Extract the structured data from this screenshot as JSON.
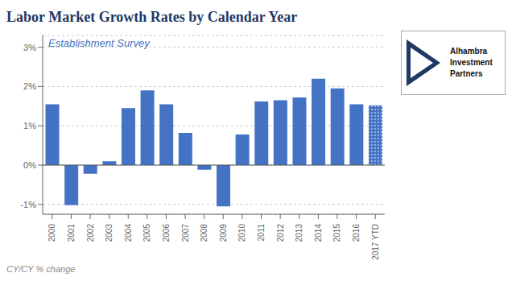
{
  "chart_data": {
    "type": "bar",
    "title": "Labor Market Growth Rates by Calendar Year",
    "subtitle": "Establishment Survey",
    "annotations": [
      "CY/CY % change",
      "Alhambra",
      "Investment",
      "Partners"
    ],
    "categories": [
      "2000",
      "2001",
      "2002",
      "2003",
      "2004",
      "2005",
      "2006",
      "2007",
      "2008",
      "2009",
      "2010",
      "2011",
      "2012",
      "2013",
      "2014",
      "2015",
      "2016",
      "2017 YTD"
    ],
    "values": [
      1.55,
      -1.02,
      -0.22,
      0.1,
      1.45,
      1.9,
      1.55,
      0.82,
      -0.12,
      -1.05,
      0.78,
      1.62,
      1.65,
      1.72,
      2.2,
      1.95,
      1.55,
      1.52
    ],
    "color": "#4472C4",
    "ylim": [
      -1.25,
      3.3
    ],
    "yticks": [
      {
        "value": -1.0,
        "label": "-1%"
      },
      {
        "value": 0.0,
        "label": "0%"
      },
      {
        "value": 1.0,
        "label": "1%"
      },
      {
        "value": 2.0,
        "label": "2%"
      },
      {
        "value": 3.0,
        "label": "3%"
      }
    ],
    "grid": true
  }
}
